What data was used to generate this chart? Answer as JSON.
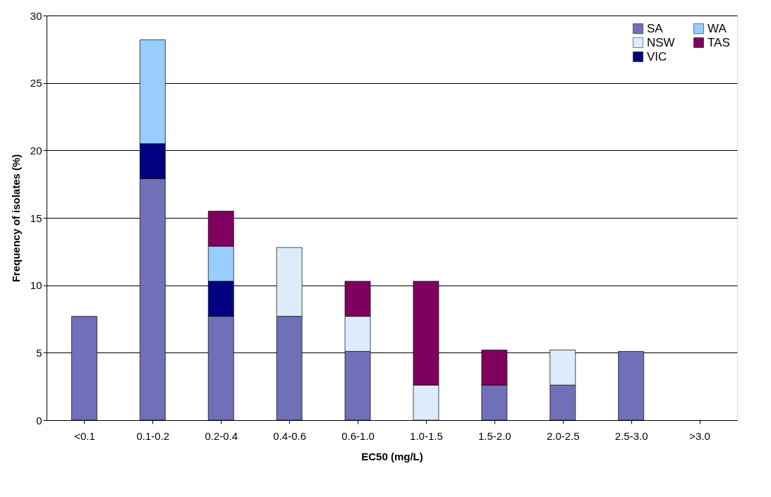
{
  "chart_data": {
    "type": "bar",
    "stacked": true,
    "xlabel": "EC50 (mg/L)",
    "ylabel": "Frequency of isolates (%)",
    "categories": [
      "<0.1",
      "0.1-0.2",
      "0.2-0.4",
      "0.4-0.6",
      "0.6-1.0",
      "1.0-1.5",
      "1.5-2.0",
      "2.0-2.5",
      "2.5-3.0",
      ">3.0"
    ],
    "series": [
      {
        "name": "SA",
        "color": "#7070b8",
        "values": [
          7.7,
          17.9,
          7.7,
          7.7,
          5.1,
          null,
          2.6,
          2.6,
          5.1,
          null
        ]
      },
      {
        "name": "NSW",
        "color": "#dcecfa",
        "values": [
          null,
          null,
          null,
          5.1,
          2.6,
          2.6,
          null,
          2.6,
          null,
          null
        ]
      },
      {
        "name": "VIC",
        "color": "#000080",
        "values": [
          null,
          2.6,
          2.6,
          null,
          null,
          null,
          null,
          null,
          null,
          null
        ]
      },
      {
        "name": "WA",
        "color": "#99ccff",
        "values": [
          null,
          7.7,
          2.6,
          null,
          null,
          null,
          null,
          null,
          null,
          null
        ]
      },
      {
        "name": "TAS",
        "color": "#800060",
        "values": [
          null,
          null,
          2.6,
          null,
          2.6,
          7.7,
          2.6,
          null,
          null,
          null
        ]
      }
    ],
    "ylim": [
      0,
      30
    ],
    "yticks": [
      0,
      5,
      10,
      15,
      20,
      25,
      30
    ],
    "grid": "y",
    "legend": "top right"
  }
}
